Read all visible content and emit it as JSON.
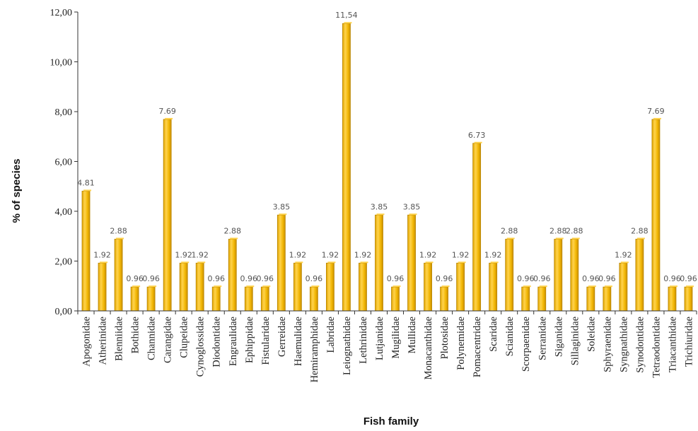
{
  "chart_data": {
    "type": "bar",
    "title": "",
    "xlabel": "Fish family",
    "ylabel": "% of species",
    "ylim": [
      0,
      12
    ],
    "grid": false,
    "y_ticks": [
      "0,00",
      "2,00",
      "4,00",
      "6,00",
      "8,00",
      "10,00",
      "12,00"
    ],
    "categories": [
      "Apogonidae",
      "Atherinidae",
      "Blenniidae",
      "Bothidae",
      "Channidae",
      "Carangidae",
      "Clupeidae",
      "Cynoglossidae",
      "Diodontidae",
      "Engraulidae",
      "Ephippidae",
      "Fistularidae",
      "Gerreidae",
      "Haemulidae",
      "Hemiramphidae",
      "Labridae",
      "Leiognathidae",
      "Lethrinidae",
      "Lutjanidae",
      "Mugilidae",
      "Mullidae",
      "Monacanthidae",
      "Plotosidae",
      "Polynemidae",
      "Pomacentridae",
      "Scaridae",
      "Scianidae",
      "Scorpaenidae",
      "Serranidae",
      "Siganidae",
      "Sillaginidae",
      "Soleidae",
      "Sphyraenidae",
      "Syngnathidae",
      "Synodontidae",
      "Tetraodontidae",
      "Triacanthidae",
      "Trichiuridae"
    ],
    "values": [
      4.81,
      1.92,
      2.88,
      0.96,
      0.96,
      7.69,
      1.92,
      1.92,
      0.96,
      2.88,
      0.96,
      0.96,
      3.85,
      1.92,
      0.96,
      1.92,
      11.54,
      1.92,
      3.85,
      0.96,
      3.85,
      1.92,
      0.96,
      1.92,
      6.73,
      1.92,
      2.88,
      0.96,
      0.96,
      2.88,
      2.88,
      0.96,
      0.96,
      1.92,
      2.88,
      7.69,
      0.96,
      0.96
    ],
    "data_labels": [
      "4.81",
      "1.92",
      "2.88",
      "0.96",
      "0.96",
      "7.69",
      "1.92",
      "1.92",
      "0.96",
      "2.88",
      "0.96",
      "0.96",
      "3.85",
      "1.92",
      "0.96",
      "1.92",
      "11,54",
      "1.92",
      "3.85",
      "0.96",
      "3.85",
      "1.92",
      "0.96",
      "1.92",
      "6.73",
      "1.92",
      "2.88",
      "0.96",
      "0.96",
      "2.88",
      "2.88",
      "0.96",
      "0.96",
      "1.92",
      "2.88",
      "7.69",
      "0.96",
      "0.96"
    ],
    "colors": {
      "bar": "#f2b705",
      "bar_edge": "#b88400",
      "bar_highlight": "#ffd34d",
      "axis": "#333333"
    }
  }
}
